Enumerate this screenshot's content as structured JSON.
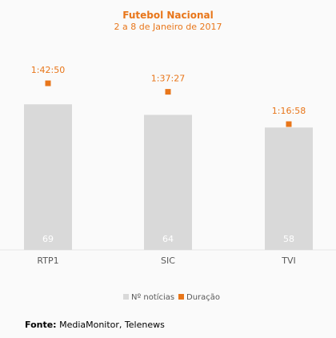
{
  "colors": {
    "accent": "#e8761a",
    "bar": "#d9d9d9",
    "text": "#595959"
  },
  "chart_data": {
    "type": "bar",
    "title": "Futebol Nacional",
    "subtitle": "2 a 8 de Janeiro de 2017",
    "categories": [
      "RTP1",
      "SIC",
      "TVI"
    ],
    "series": [
      {
        "name": "Nº notícias",
        "type": "bar",
        "values": [
          69,
          64,
          58
        ]
      },
      {
        "name": "Duração",
        "type": "marker",
        "values": [
          6170,
          5847,
          4618
        ],
        "labels": [
          "1:42:50",
          "1:37:27",
          "1:16:58"
        ]
      }
    ],
    "ylim": [
      0,
      82
    ],
    "legend_position": "bottom",
    "grid": false
  },
  "source": {
    "label": "Fonte:",
    "text": "MediaMonitor, Telenews"
  }
}
